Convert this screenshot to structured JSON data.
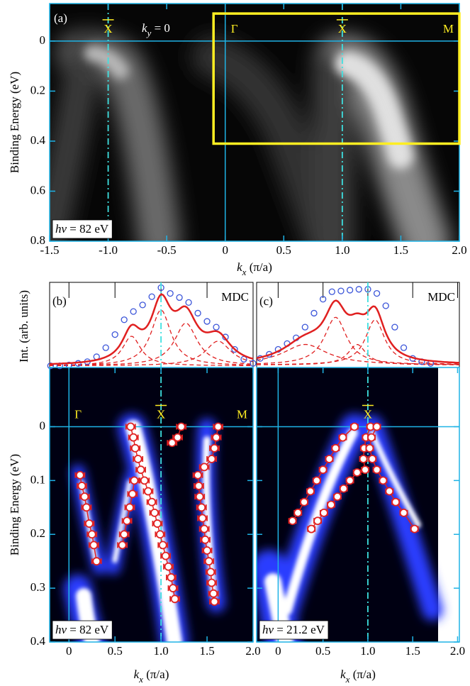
{
  "chart_data": [
    {
      "type": "image",
      "panel_label": "(a)",
      "annotation": [
        "k",
        "y",
        " = 0"
      ],
      "photon_energy": [
        "hv",
        " = 82 eV"
      ],
      "x_label": [
        "k",
        "x",
        " (π/a)"
      ],
      "y_label": "Binding Energy (eV)",
      "xlim": [
        -1.5,
        2.0
      ],
      "ylim": [
        -0.15,
        0.8
      ],
      "xticks": [
        -1.5,
        {
          "value": -1,
          "label": "-1.0"
        },
        -0.5,
        0,
        0.5,
        {
          "value": 1,
          "label": "1.0"
        },
        1.5,
        {
          "value": 2,
          "label": "2.0"
        }
      ],
      "yticks": [
        0,
        0.2,
        0.4,
        0.6,
        0.8
      ],
      "ytick_labels": true,
      "symmetry_points": [
        {
          "text": "X",
          "x": -1,
          "overline": true
        },
        {
          "text": "Γ",
          "x": 0,
          "overline": false
        },
        {
          "text": "X",
          "x": 1,
          "overline": true
        },
        {
          "text": "M",
          "x": 2,
          "overline": false
        }
      ],
      "dashed_lines_x": [
        -1,
        1
      ],
      "box": {
        "xlim": [
          -0.1,
          2.0
        ],
        "ylim": [
          -0.11,
          0.41
        ],
        "color": "#ffee22"
      }
    },
    {
      "type": "mdc_dispersion",
      "panel_label": "(b)",
      "mdc_label": "MDC",
      "mdc_ylabel": "Int. (arb. units)",
      "photon_energy": [
        "hv",
        " = 82 eV"
      ],
      "x_label": [
        "k",
        "x",
        " (π/a)"
      ],
      "y_label": "Binding Energy (eV)",
      "xlim": [
        -0.21,
        2.0
      ],
      "ylim": [
        -0.11,
        0.4
      ],
      "xticks": [
        0,
        0.5,
        {
          "value": 1,
          "label": "1.0"
        },
        1.5,
        {
          "value": 2,
          "label": "2.0"
        }
      ],
      "yticks": [
        0,
        0.1,
        0.2,
        0.3,
        0.4
      ],
      "ytick_labels": true,
      "symmetry_points": [
        {
          "text": "Γ",
          "x": 0,
          "overline": false
        },
        {
          "text": "X",
          "x": 1,
          "overline": true
        },
        {
          "text": "M",
          "x": 2,
          "overline": false
        }
      ],
      "dashed_lines_x": [
        1
      ],
      "mdc": {
        "ylim": [
          0,
          1
        ],
        "color": "#3b55d9",
        "fit_color": "#e02020",
        "background": 0.02,
        "x": [
          -0.2,
          -0.1,
          0,
          0.1,
          0.2,
          0.3,
          0.4,
          0.5,
          0.6,
          0.7,
          0.8,
          0.9,
          1.0,
          1.1,
          1.2,
          1.3,
          1.4,
          1.5,
          1.6,
          1.7,
          1.8,
          1.9,
          2.0
        ],
        "values": [
          0.02,
          0.02,
          0.03,
          0.05,
          0.07,
          0.13,
          0.24,
          0.4,
          0.58,
          0.68,
          0.76,
          0.86,
          0.97,
          0.9,
          0.85,
          0.79,
          0.66,
          0.56,
          0.49,
          0.37,
          0.22,
          0.1,
          0.05
        ],
        "components": [
          {
            "center": 0.68,
            "amplitude": 0.36,
            "width": 0.12
          },
          {
            "center": 1.0,
            "amplitude": 0.68,
            "width": 0.13
          },
          {
            "center": 1.27,
            "amplitude": 0.52,
            "width": 0.15
          },
          {
            "center": 1.62,
            "amplitude": 0.3,
            "width": 0.17
          }
        ]
      },
      "dispersion": {
        "color": "#e02020",
        "xerr": 0.05,
        "bands": [
          {
            "x": [
              0.12,
              0.14,
              0.17,
              0.19,
              0.22,
              0.25,
              0.27,
              0.3
            ],
            "y": [
              0.09,
              0.11,
              0.13,
              0.15,
              0.18,
              0.2,
              0.22,
              0.25
            ]
          },
          {
            "x": [
              0.71,
              0.69,
              0.66,
              0.63,
              0.6,
              0.58
            ],
            "y": [
              0.1,
              0.125,
              0.15,
              0.175,
              0.2,
              0.22
            ]
          },
          {
            "x": [
              0.67,
              0.7,
              0.72,
              0.75,
              0.78,
              0.82,
              0.86,
              0.9,
              0.93,
              0.96,
              0.99,
              1.02,
              1.05,
              1.08,
              1.11,
              1.13,
              1.15
            ],
            "y": [
              0,
              0.02,
              0.04,
              0.06,
              0.08,
              0.1,
              0.12,
              0.14,
              0.16,
              0.18,
              0.2,
              0.22,
              0.24,
              0.26,
              0.28,
              0.3,
              0.32
            ]
          },
          {
            "x": [
              1.22,
              1.18,
              1.12
            ],
            "y": [
              0,
              0.02,
              0.03
            ]
          },
          {
            "x": [
              1.62,
              1.6,
              1.58,
              1.55,
              1.47,
              1.4,
              1.41,
              1.42,
              1.44,
              1.45,
              1.47,
              1.48,
              1.5,
              1.52,
              1.54,
              1.55,
              1.57,
              1.58
            ],
            "y": [
              0,
              0.02,
              0.04,
              0.06,
              0.075,
              0.09,
              0.11,
              0.13,
              0.15,
              0.17,
              0.19,
              0.21,
              0.23,
              0.25,
              0.27,
              0.29,
              0.31,
              0.325
            ]
          }
        ]
      }
    },
    {
      "type": "mdc_dispersion",
      "panel_label": "(c)",
      "mdc_label": "MDC",
      "photon_energy": [
        "hv",
        " = 21.2 eV"
      ],
      "x_label": [
        "k",
        "x",
        " (π/a)"
      ],
      "xlim": [
        -0.24,
        2.02
      ],
      "ylim": [
        -0.11,
        0.4
      ],
      "xticks": [
        0,
        0.5,
        {
          "value": 1,
          "label": "1.0"
        },
        1.5,
        {
          "value": 2,
          "label": "2.0"
        }
      ],
      "yticks": [
        0,
        0.1,
        0.2,
        0.3,
        0.4
      ],
      "ytick_labels": false,
      "symmetry_points": [
        {
          "text": "X",
          "x": 1,
          "overline": true
        }
      ],
      "dashed_lines_x": [
        1
      ],
      "mdc": {
        "ylim": [
          0,
          1
        ],
        "color": "#3b55d9",
        "fit_color": "#e02020",
        "background": 0.03,
        "x": [
          -0.2,
          -0.1,
          0,
          0.1,
          0.2,
          0.3,
          0.4,
          0.5,
          0.6,
          0.7,
          0.8,
          0.9,
          1.0,
          1.1,
          1.2,
          1.3,
          1.4,
          1.5,
          1.6,
          1.7
        ],
        "values": [
          0.11,
          0.16,
          0.22,
          0.29,
          0.36,
          0.49,
          0.66,
          0.83,
          0.92,
          0.93,
          0.94,
          0.95,
          0.95,
          0.9,
          0.75,
          0.49,
          0.24,
          0.11,
          0.07,
          0.05
        ],
        "components": [
          {
            "center": 0.3,
            "amplitude": 0.25,
            "width": 0.3
          },
          {
            "center": 0.64,
            "amplitude": 0.58,
            "width": 0.15
          },
          {
            "center": 0.88,
            "amplitude": 0.25,
            "width": 0.12
          },
          {
            "center": 1.08,
            "amplitude": 0.55,
            "width": 0.13
          }
        ]
      },
      "dispersion": {
        "color": "#e02020",
        "xerr": 0.04,
        "bands": [
          {
            "x": [
              0.85,
              0.72,
              0.64,
              0.57,
              0.5,
              0.43,
              0.36,
              0.29,
              0.22,
              0.16
            ],
            "y": [
              0,
              0.02,
              0.04,
              0.06,
              0.08,
              0.1,
              0.12,
              0.14,
              0.16,
              0.175
            ]
          },
          {
            "x": [
              1.03,
              0.98,
              0.96,
              0.95,
              0.97
            ],
            "y": [
              0,
              0.02,
              0.04,
              0.06,
              0.08
            ]
          },
          {
            "x": [
              0.88,
              0.8,
              0.73,
              0.66,
              0.59,
              0.51,
              0.44,
              0.37
            ],
            "y": [
              0.085,
              0.1,
              0.115,
              0.13,
              0.145,
              0.16,
              0.175,
              0.19
            ]
          },
          {
            "x": [
              1.1,
              1.04,
              1.02,
              1.05,
              1.1,
              1.17,
              1.24,
              1.31,
              1.4,
              1.52
            ],
            "y": [
              0,
              0.02,
              0.04,
              0.06,
              0.08,
              0.1,
              0.12,
              0.14,
              0.16,
              0.19
            ]
          }
        ]
      }
    }
  ]
}
